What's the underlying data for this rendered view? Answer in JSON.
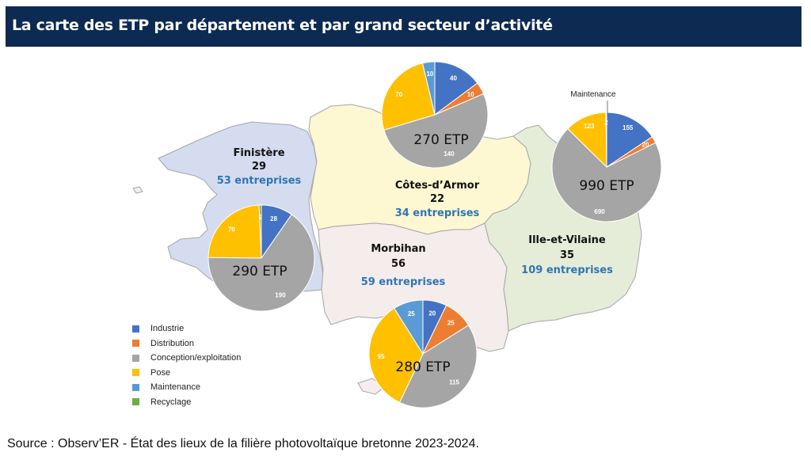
{
  "title": "La carte des ETP par département et par grand secteur d’activité",
  "colors": {
    "title_bg": "#0c2a52",
    "count_text": "#2e75b6",
    "finistere_fill": "#d5dcef",
    "cotes_fill": "#fdf7d2",
    "morbihan_fill": "#f5ecec",
    "ille_fill": "#e5edd8",
    "border": "#a6a6a6"
  },
  "legend": [
    {
      "label": "Industrie",
      "color": "#4472c4"
    },
    {
      "label": "Distribution",
      "color": "#ed7d31"
    },
    {
      "label": "Conception/exploitation",
      "color": "#a5a5a5"
    },
    {
      "label": "Pose",
      "color": "#ffc000"
    },
    {
      "label": "Maintenance",
      "color": "#5b9bd5"
    },
    {
      "label": "Recyclage",
      "color": "#70ad47"
    }
  ],
  "departments": [
    {
      "name": "Finistère",
      "enterprise_count": "29",
      "enterprises": "53 entreprises"
    },
    {
      "name": "Côtes-d’Armor",
      "enterprise_count": "22",
      "enterprises": "34 entreprises"
    },
    {
      "name": "Morbihan",
      "enterprise_count": "56",
      "enterprises": "59 entreprises"
    },
    {
      "name": "Ille-et-Vilaine",
      "enterprise_count": "35",
      "enterprises": "109 entreprises"
    }
  ],
  "chart_data": [
    {
      "type": "pie",
      "department": "Finistère",
      "total_label": "290 ETP",
      "categories": [
        "Industrie",
        "Distribution",
        "Conception/exploitation",
        "Pose",
        "Maintenance",
        "Recyclage"
      ],
      "values": [
        28,
        0,
        190,
        70,
        0,
        2
      ],
      "labels": [
        "28",
        "",
        "190",
        "70",
        "",
        "2"
      ]
    },
    {
      "type": "pie",
      "department": "Côtes-d’Armor",
      "total_label": "270 ETP",
      "categories": [
        "Industrie",
        "Distribution",
        "Conception/exploitation",
        "Pose",
        "Maintenance",
        "Recyclage"
      ],
      "values": [
        40,
        10,
        140,
        70,
        10,
        0
      ],
      "labels": [
        "40",
        "10",
        "140",
        "70",
        "10",
        ""
      ]
    },
    {
      "type": "pie",
      "department": "Morbihan",
      "total_label": "280 ETP",
      "categories": [
        "Industrie",
        "Distribution",
        "Conception/exploitation",
        "Pose",
        "Maintenance",
        "Recyclage"
      ],
      "values": [
        20,
        25,
        115,
        95,
        25,
        0
      ],
      "labels": [
        "20",
        "25",
        "115",
        "95",
        "25",
        ""
      ]
    },
    {
      "type": "pie",
      "department": "Ille-et-Vilaine",
      "total_label": "990 ETP",
      "categories": [
        "Industrie",
        "Distribution",
        "Conception/exploitation",
        "Pose",
        "Maintenance",
        "Recyclage"
      ],
      "values": [
        155,
        20,
        690,
        123,
        2,
        0
      ],
      "labels": [
        "155",
        "20",
        "690",
        "123",
        "2",
        ""
      ],
      "annotation": "Maintenance"
    }
  ],
  "source": "Source : Observ’ER - État des lieux de la filière photovoltaïque bretonne 2023-2024."
}
